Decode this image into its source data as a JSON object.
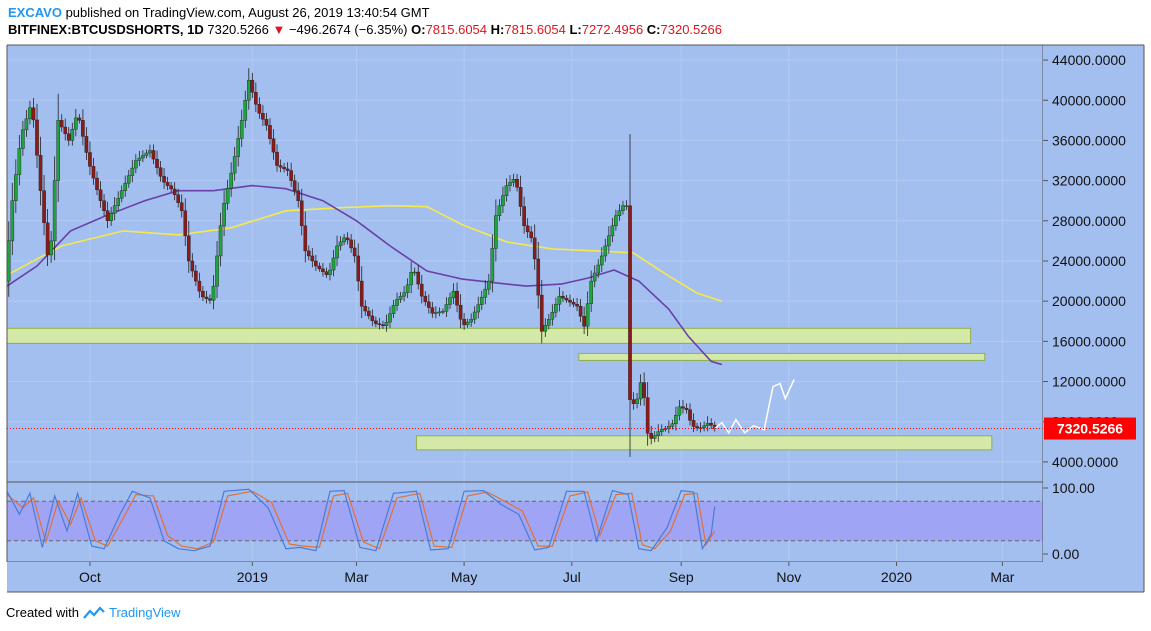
{
  "header": {
    "author": "EXCAVO",
    "published_text": "published on TradingView.com, August 26, 2019 13:40:54 GMT",
    "symbol": "BITFINEX:BTCUSDSHORTS, 1D",
    "last_price": "7320.5266",
    "change": "−496.2674 (−6.35%)",
    "open_label": "O:",
    "open": "7815.6054",
    "high_label": "H:",
    "high": "7815.6054",
    "low_label": "L:",
    "low": "7272.4956",
    "close_label": "C:",
    "close": "7320.5266"
  },
  "footer": {
    "created_with": "Created with",
    "brand": "TradingView"
  },
  "colors": {
    "background": "#a3bff0",
    "up": "#1fa33c",
    "down": "#8b1a1a",
    "ma_fast": "#6a3fa8",
    "ma_slow": "#f5e94e",
    "zone_fill": "#d9ec9f",
    "price_label": "#ff0000",
    "stoch_band": "#9f9ff5",
    "stoch_k": "#4a7bd9",
    "stoch_d": "#e0713a",
    "projection": "#ffffff"
  },
  "chart_data": {
    "type": "candlestick",
    "price_axis": {
      "ticks": [
        4000,
        8000,
        12000,
        16000,
        20000,
        24000,
        28000,
        32000,
        36000,
        40000,
        44000
      ],
      "tick_labels": [
        "4000.0000",
        "8000.0000",
        "12000.0000",
        "16000.0000",
        "20000.0000",
        "24000.0000",
        "28000.0000",
        "32000.0000",
        "36000.0000",
        "40000.0000",
        "44000.0000"
      ],
      "ylim": [
        2000,
        45500
      ]
    },
    "time_axis": {
      "labels": [
        "Oct",
        "2019",
        "Mar",
        "May",
        "Jul",
        "Sep",
        "Nov",
        "2020",
        "Mar"
      ],
      "dates": [
        "2018-10-01",
        "2019-01-01",
        "2019-03-01",
        "2019-05-01",
        "2019-07-01",
        "2019-09-01",
        "2019-11-01",
        "2020-01-01",
        "2020-03-01"
      ],
      "xlim": [
        "2018-08-15",
        "2020-03-24"
      ]
    },
    "last_price_label": "7320.5266",
    "last_price_value": 7320.5266,
    "support_zones": [
      {
        "from": "2018-08-15",
        "to": "2020-02-12",
        "low": 15800,
        "high": 17300
      },
      {
        "from": "2019-07-05",
        "to": "2020-02-20",
        "low": 14100,
        "high": 14800
      },
      {
        "from": "2019-04-04",
        "to": "2020-02-24",
        "low": 5200,
        "high": 6600
      }
    ],
    "price_path": [
      [
        "2018-08-15",
        22000
      ],
      [
        "2018-08-19",
        30000
      ],
      [
        "2018-08-24",
        36500
      ],
      [
        "2018-08-30",
        39800
      ],
      [
        "2018-09-04",
        31000
      ],
      [
        "2018-09-09",
        23000
      ],
      [
        "2018-09-14",
        38000
      ],
      [
        "2018-09-20",
        36000
      ],
      [
        "2018-09-25",
        38800
      ],
      [
        "2018-10-01",
        34000
      ],
      [
        "2018-10-07",
        30500
      ],
      [
        "2018-10-12",
        28000
      ],
      [
        "2018-10-20",
        31000
      ],
      [
        "2018-10-28",
        34000
      ],
      [
        "2018-11-05",
        35000
      ],
      [
        "2018-11-12",
        32000
      ],
      [
        "2018-11-18",
        31000
      ],
      [
        "2018-11-23",
        29000
      ],
      [
        "2018-11-27",
        24000
      ],
      [
        "2018-12-04",
        20500
      ],
      [
        "2018-12-10",
        20000
      ],
      [
        "2018-12-16",
        29000
      ],
      [
        "2018-12-22",
        33500
      ],
      [
        "2018-12-27",
        38000
      ],
      [
        "2018-12-31",
        42000
      ],
      [
        "2019-01-05",
        39000
      ],
      [
        "2019-01-10",
        37500
      ],
      [
        "2019-01-16",
        33500
      ],
      [
        "2019-01-22",
        33000
      ],
      [
        "2019-01-28",
        30000
      ],
      [
        "2019-02-01",
        25000
      ],
      [
        "2019-02-07",
        23500
      ],
      [
        "2019-02-14",
        22500
      ],
      [
        "2019-02-19",
        25500
      ],
      [
        "2019-02-24",
        26500
      ],
      [
        "2019-03-01",
        24500
      ],
      [
        "2019-03-05",
        19500
      ],
      [
        "2019-03-12",
        17800
      ],
      [
        "2019-03-18",
        17500
      ],
      [
        "2019-03-24",
        20000
      ],
      [
        "2019-03-30",
        21000
      ],
      [
        "2019-04-03",
        23500
      ],
      [
        "2019-04-08",
        20500
      ],
      [
        "2019-04-14",
        18800
      ],
      [
        "2019-04-20",
        19000
      ],
      [
        "2019-04-26",
        21000
      ],
      [
        "2019-05-01",
        17500
      ],
      [
        "2019-05-06",
        18200
      ],
      [
        "2019-05-11",
        20000
      ],
      [
        "2019-05-16",
        22000
      ],
      [
        "2019-05-20",
        28500
      ],
      [
        "2019-05-26",
        31500
      ],
      [
        "2019-05-31",
        32300
      ],
      [
        "2019-06-05",
        27500
      ],
      [
        "2019-06-10",
        26000
      ],
      [
        "2019-06-15",
        17000
      ],
      [
        "2019-06-20",
        18500
      ],
      [
        "2019-06-25",
        20500
      ],
      [
        "2019-06-30",
        20000
      ],
      [
        "2019-07-05",
        19500
      ],
      [
        "2019-07-09",
        17500
      ],
      [
        "2019-07-13",
        22000
      ],
      [
        "2019-07-18",
        24000
      ],
      [
        "2019-07-23",
        26500
      ],
      [
        "2019-07-27",
        28500
      ],
      [
        "2019-07-31",
        29500
      ],
      [
        "2019-08-03",
        29500
      ],
      [
        "2019-08-04",
        10200
      ],
      [
        "2019-08-06",
        9800
      ],
      [
        "2019-08-09",
        10500
      ],
      [
        "2019-08-11",
        13300
      ],
      [
        "2019-08-13",
        7500
      ],
      [
        "2019-08-15",
        6200
      ],
      [
        "2019-08-18",
        6600
      ],
      [
        "2019-08-21",
        7200
      ],
      [
        "2019-08-24",
        7300
      ],
      [
        "2019-08-28",
        7800
      ],
      [
        "2019-09-01",
        9500
      ],
      [
        "2019-09-05",
        9200
      ],
      [
        "2019-09-08",
        7600
      ],
      [
        "2019-09-12",
        7300
      ],
      [
        "2019-09-16",
        7700
      ],
      [
        "2019-09-18",
        8000
      ],
      [
        "2019-09-20",
        7320
      ]
    ],
    "ma_fast_path": [
      [
        "2018-08-15",
        21500
      ],
      [
        "2018-09-01",
        23500
      ],
      [
        "2018-09-20",
        27000
      ],
      [
        "2018-10-10",
        28500
      ],
      [
        "2018-11-01",
        30000
      ],
      [
        "2018-11-20",
        31000
      ],
      [
        "2018-12-10",
        31000
      ],
      [
        "2019-01-01",
        31500
      ],
      [
        "2019-01-20",
        31200
      ],
      [
        "2019-02-10",
        30000
      ],
      [
        "2019-03-01",
        28000
      ],
      [
        "2019-03-20",
        25500
      ],
      [
        "2019-04-10",
        23000
      ],
      [
        "2019-04-30",
        22200
      ],
      [
        "2019-05-20",
        21800
      ],
      [
        "2019-06-05",
        21500
      ],
      [
        "2019-06-25",
        21700
      ],
      [
        "2019-07-10",
        22300
      ],
      [
        "2019-07-25",
        23100
      ],
      [
        "2019-08-08",
        22000
      ],
      [
        "2019-08-25",
        19200
      ],
      [
        "2019-09-05",
        16500
      ],
      [
        "2019-09-18",
        14000
      ],
      [
        "2019-09-24",
        13700
      ]
    ],
    "ma_slow_path": [
      [
        "2018-08-15",
        22600
      ],
      [
        "2018-09-15",
        25500
      ],
      [
        "2018-10-20",
        27000
      ],
      [
        "2018-11-20",
        26600
      ],
      [
        "2018-12-20",
        27300
      ],
      [
        "2019-01-20",
        29000
      ],
      [
        "2019-02-20",
        29300
      ],
      [
        "2019-03-20",
        29500
      ],
      [
        "2019-04-10",
        29400
      ],
      [
        "2019-04-30",
        27600
      ],
      [
        "2019-05-25",
        25900
      ],
      [
        "2019-06-20",
        25200
      ],
      [
        "2019-07-15",
        25000
      ],
      [
        "2019-08-05",
        24800
      ],
      [
        "2019-08-25",
        22500
      ],
      [
        "2019-09-10",
        20800
      ],
      [
        "2019-09-24",
        20000
      ]
    ],
    "projection_path": [
      [
        "2019-09-20",
        7320
      ],
      [
        "2019-09-24",
        7900
      ],
      [
        "2019-09-28",
        6900
      ],
      [
        "2019-10-02",
        8200
      ],
      [
        "2019-10-07",
        6900
      ],
      [
        "2019-10-12",
        7600
      ],
      [
        "2019-10-18",
        7200
      ],
      [
        "2019-10-23",
        11500
      ],
      [
        "2019-10-27",
        11800
      ],
      [
        "2019-10-30",
        10300
      ],
      [
        "2019-11-04",
        12200
      ]
    ],
    "stochastic": {
      "tick_labels": [
        "100.00",
        "0.00"
      ],
      "ylim": [
        0,
        100
      ],
      "band": [
        20,
        80
      ],
      "k_path": [
        [
          "2018-08-15",
          95
        ],
        [
          "2018-08-22",
          60
        ],
        [
          "2018-08-28",
          92
        ],
        [
          "2018-09-04",
          10
        ],
        [
          "2018-09-11",
          88
        ],
        [
          "2018-09-18",
          35
        ],
        [
          "2018-09-24",
          92
        ],
        [
          "2018-10-02",
          12
        ],
        [
          "2018-10-09",
          8
        ],
        [
          "2018-10-18",
          60
        ],
        [
          "2018-10-25",
          95
        ],
        [
          "2018-11-04",
          85
        ],
        [
          "2018-11-12",
          20
        ],
        [
          "2018-11-20",
          8
        ],
        [
          "2018-11-29",
          5
        ],
        [
          "2018-12-08",
          12
        ],
        [
          "2018-12-16",
          95
        ],
        [
          "2018-12-30",
          98
        ],
        [
          "2019-01-10",
          70
        ],
        [
          "2019-01-20",
          8
        ],
        [
          "2019-01-28",
          10
        ],
        [
          "2019-02-06",
          5
        ],
        [
          "2019-02-14",
          95
        ],
        [
          "2019-02-22",
          96
        ],
        [
          "2019-03-03",
          10
        ],
        [
          "2019-03-12",
          5
        ],
        [
          "2019-03-22",
          92
        ],
        [
          "2019-04-04",
          95
        ],
        [
          "2019-04-12",
          6
        ],
        [
          "2019-04-22",
          8
        ],
        [
          "2019-05-01",
          95
        ],
        [
          "2019-05-12",
          96
        ],
        [
          "2019-05-22",
          75
        ],
        [
          "2019-06-01",
          60
        ],
        [
          "2019-06-10",
          6
        ],
        [
          "2019-06-18",
          10
        ],
        [
          "2019-06-28",
          95
        ],
        [
          "2019-07-08",
          95
        ],
        [
          "2019-07-15",
          20
        ],
        [
          "2019-07-24",
          96
        ],
        [
          "2019-08-02",
          90
        ],
        [
          "2019-08-08",
          8
        ],
        [
          "2019-08-15",
          5
        ],
        [
          "2019-08-24",
          40
        ],
        [
          "2019-09-01",
          96
        ],
        [
          "2019-09-08",
          94
        ],
        [
          "2019-09-13",
          8
        ],
        [
          "2019-09-18",
          30
        ],
        [
          "2019-09-20",
          72
        ]
      ],
      "d_path": [
        [
          "2018-08-15",
          90
        ],
        [
          "2018-08-24",
          70
        ],
        [
          "2018-08-30",
          85
        ],
        [
          "2018-09-06",
          18
        ],
        [
          "2018-09-13",
          80
        ],
        [
          "2018-09-20",
          45
        ],
        [
          "2018-09-26",
          85
        ],
        [
          "2018-10-04",
          20
        ],
        [
          "2018-10-11",
          12
        ],
        [
          "2018-10-20",
          55
        ],
        [
          "2018-10-27",
          90
        ],
        [
          "2018-11-06",
          88
        ],
        [
          "2018-11-14",
          28
        ],
        [
          "2018-11-22",
          12
        ],
        [
          "2018-12-01",
          8
        ],
        [
          "2018-12-10",
          18
        ],
        [
          "2018-12-18",
          88
        ],
        [
          "2019-01-01",
          95
        ],
        [
          "2019-01-12",
          78
        ],
        [
          "2019-01-22",
          15
        ],
        [
          "2019-01-30",
          12
        ],
        [
          "2019-02-08",
          10
        ],
        [
          "2019-02-16",
          88
        ],
        [
          "2019-02-24",
          92
        ],
        [
          "2019-03-05",
          18
        ],
        [
          "2019-03-14",
          8
        ],
        [
          "2019-03-24",
          85
        ],
        [
          "2019-04-06",
          92
        ],
        [
          "2019-04-14",
          12
        ],
        [
          "2019-04-24",
          10
        ],
        [
          "2019-05-03",
          88
        ],
        [
          "2019-05-14",
          94
        ],
        [
          "2019-05-24",
          80
        ],
        [
          "2019-06-03",
          65
        ],
        [
          "2019-06-12",
          12
        ],
        [
          "2019-06-20",
          12
        ],
        [
          "2019-06-30",
          88
        ],
        [
          "2019-07-10",
          94
        ],
        [
          "2019-07-17",
          28
        ],
        [
          "2019-07-26",
          90
        ],
        [
          "2019-08-04",
          92
        ],
        [
          "2019-08-10",
          14
        ],
        [
          "2019-08-17",
          8
        ],
        [
          "2019-08-26",
          35
        ],
        [
          "2019-09-03",
          90
        ],
        [
          "2019-09-10",
          92
        ],
        [
          "2019-09-15",
          14
        ],
        [
          "2019-09-20",
          35
        ]
      ]
    }
  }
}
